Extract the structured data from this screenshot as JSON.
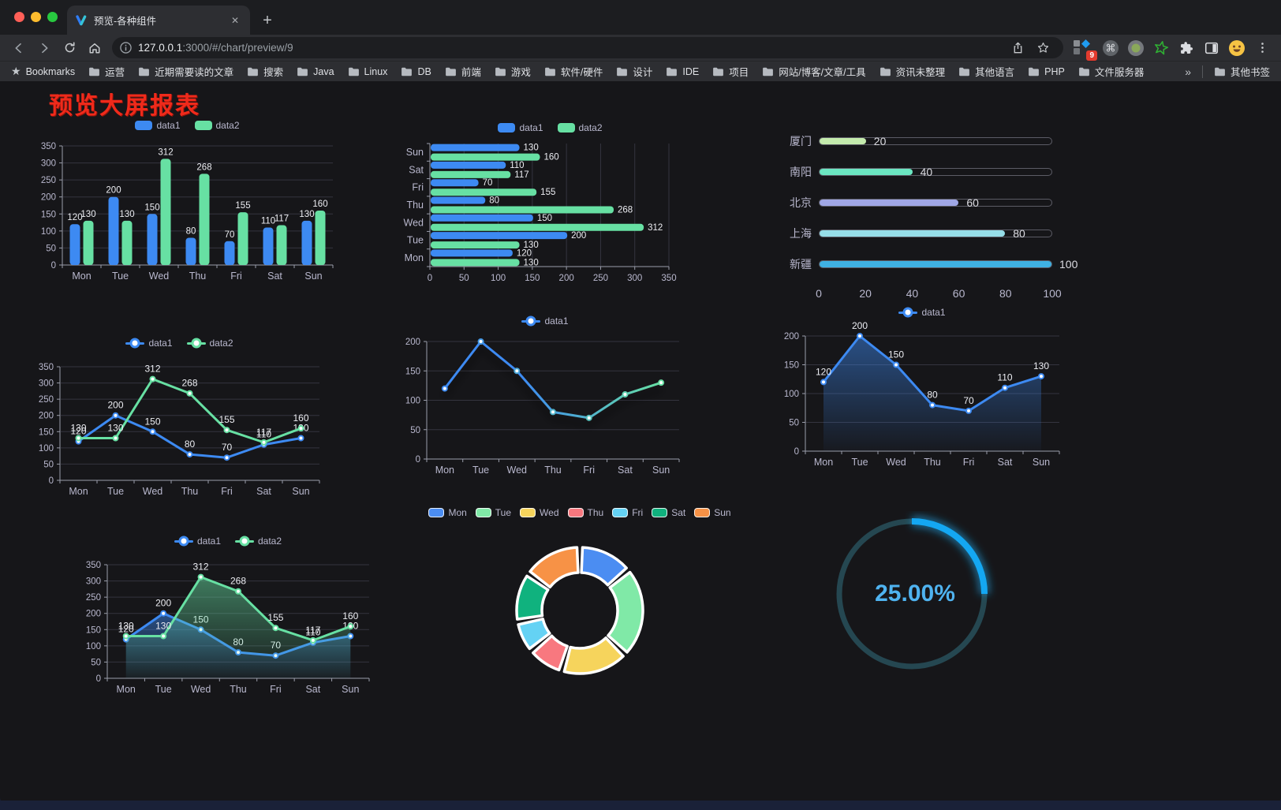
{
  "browser": {
    "tab": {
      "title": "预览-各种组件",
      "close": "✕",
      "new_tab": "+"
    },
    "url": {
      "host": "127.0.0.1",
      "rest": ":3000/#/chart/preview/9"
    },
    "ext_badge": "9",
    "bookmarks_label": "Bookmarks",
    "bookmarks": [
      "运营",
      "近期需要读的文章",
      "搜索",
      "Java",
      "Linux",
      "DB",
      "前端",
      "游戏",
      "软件/硬件",
      "设计",
      "IDE",
      "项目",
      "网站/博客/文章/工具",
      "资讯未整理",
      "其他语言",
      "PHP",
      "文件服务器"
    ],
    "bookmarks_overflow": "»",
    "other_bookmarks": "其他书签"
  },
  "page": {
    "title": "预览大屏报表",
    "colors": {
      "series_blue": "#3d8af2",
      "series_green": "#67e0a3",
      "bg": "#161619",
      "footer": "#1a2138",
      "title_red": "#ef2a1b"
    }
  },
  "chart_data": [
    {
      "id": "bar_vertical",
      "type": "bar",
      "categories": [
        "Mon",
        "Tue",
        "Wed",
        "Thu",
        "Fri",
        "Sat",
        "Sun"
      ],
      "series": [
        {
          "name": "data1",
          "color": "#3d8af2",
          "values": [
            120,
            200,
            150,
            80,
            70,
            110,
            130
          ]
        },
        {
          "name": "data2",
          "color": "#67e0a3",
          "values": [
            130,
            130,
            312,
            268,
            155,
            117,
            160
          ]
        }
      ],
      "ylim": [
        0,
        350
      ],
      "ytick": 50,
      "legend_position": "top",
      "grid": true
    },
    {
      "id": "bar_horizontal",
      "type": "bar",
      "orientation": "horizontal",
      "categories": [
        "Mon",
        "Tue",
        "Wed",
        "Thu",
        "Fri",
        "Sat",
        "Sun"
      ],
      "series": [
        {
          "name": "data1",
          "color": "#3d8af2",
          "values": [
            120,
            200,
            150,
            80,
            70,
            110,
            130
          ]
        },
        {
          "name": "data2",
          "color": "#67e0a3",
          "values": [
            130,
            130,
            312,
            268,
            155,
            117,
            160
          ]
        }
      ],
      "xlim": [
        0,
        350
      ],
      "xtick": 50,
      "legend_position": "top",
      "grid": true
    },
    {
      "id": "city_progress",
      "type": "bar",
      "orientation": "horizontal-progress",
      "items": [
        {
          "label": "厦门",
          "value": 20,
          "color": "#c4ebad"
        },
        {
          "label": "南阳",
          "value": 40,
          "color": "#6be6c1"
        },
        {
          "label": "北京",
          "value": 60,
          "color": "#a0a7e6"
        },
        {
          "label": "上海",
          "value": 80,
          "color": "#96dee8"
        },
        {
          "label": "新疆",
          "value": 100,
          "color": "#3fb1e3"
        }
      ],
      "max": 100,
      "ticks": [
        0,
        20,
        40,
        60,
        80,
        100
      ]
    },
    {
      "id": "line_dual",
      "type": "line",
      "categories": [
        "Mon",
        "Tue",
        "Wed",
        "Thu",
        "Fri",
        "Sat",
        "Sun"
      ],
      "series": [
        {
          "name": "data1",
          "color": "#3d8af2",
          "values": [
            120,
            200,
            150,
            80,
            70,
            110,
            130
          ]
        },
        {
          "name": "data2",
          "color": "#67e0a3",
          "values": [
            130,
            130,
            312,
            268,
            155,
            117,
            160
          ]
        }
      ],
      "ylim": [
        0,
        350
      ],
      "ytick": 50,
      "labels": true,
      "legend_position": "top",
      "grid": true
    },
    {
      "id": "line_gradient",
      "type": "line",
      "categories": [
        "Mon",
        "Tue",
        "Wed",
        "Thu",
        "Fri",
        "Sat",
        "Sun"
      ],
      "series": [
        {
          "name": "data1",
          "color": "#3d8af2",
          "color_from": "#3d8af2",
          "color_to": "#67e0a3",
          "values": [
            120,
            200,
            150,
            80,
            70,
            110,
            130
          ]
        }
      ],
      "ylim": [
        0,
        200
      ],
      "ytick": 50,
      "labels": false,
      "shadow": true,
      "legend_position": "top",
      "grid": true
    },
    {
      "id": "area_single",
      "type": "area",
      "categories": [
        "Mon",
        "Tue",
        "Wed",
        "Thu",
        "Fri",
        "Sat",
        "Sun"
      ],
      "series": [
        {
          "name": "data1",
          "color": "#3d8af2",
          "area": true,
          "values": [
            120,
            200,
            150,
            80,
            70,
            110,
            130
          ]
        }
      ],
      "ylim": [
        0,
        200
      ],
      "ytick": 50,
      "labels": true,
      "legend_position": "top",
      "grid": true
    },
    {
      "id": "area_dual",
      "type": "area",
      "categories": [
        "Mon",
        "Tue",
        "Wed",
        "Thu",
        "Fri",
        "Sat",
        "Sun"
      ],
      "series": [
        {
          "name": "data1",
          "color": "#3d8af2",
          "area": true,
          "values": [
            120,
            200,
            150,
            80,
            70,
            110,
            130
          ]
        },
        {
          "name": "data2",
          "color": "#67e0a3",
          "area": true,
          "values": [
            130,
            130,
            312,
            268,
            155,
            117,
            160
          ]
        }
      ],
      "ylim": [
        0,
        350
      ],
      "ytick": 50,
      "labels": true,
      "legend_position": "top",
      "grid": true
    },
    {
      "id": "donut",
      "type": "pie",
      "categories": [
        "Mon",
        "Tue",
        "Wed",
        "Thu",
        "Fri",
        "Sat",
        "Sun"
      ],
      "values": [
        120,
        200,
        150,
        80,
        70,
        110,
        130
      ],
      "colors": [
        "#4b8df2",
        "#80e9a7",
        "#f6d45c",
        "#f8787f",
        "#64d2f4",
        "#10b27e",
        "#f79246"
      ],
      "legend_position": "top",
      "inner_radius_ratio": 0.6
    },
    {
      "id": "progress_ring",
      "type": "gauge",
      "percent": 25,
      "value_label": "25.00%",
      "track_color": "#254751",
      "arc_color": "#14a7f2",
      "text_color": "#4fb3f0"
    }
  ]
}
